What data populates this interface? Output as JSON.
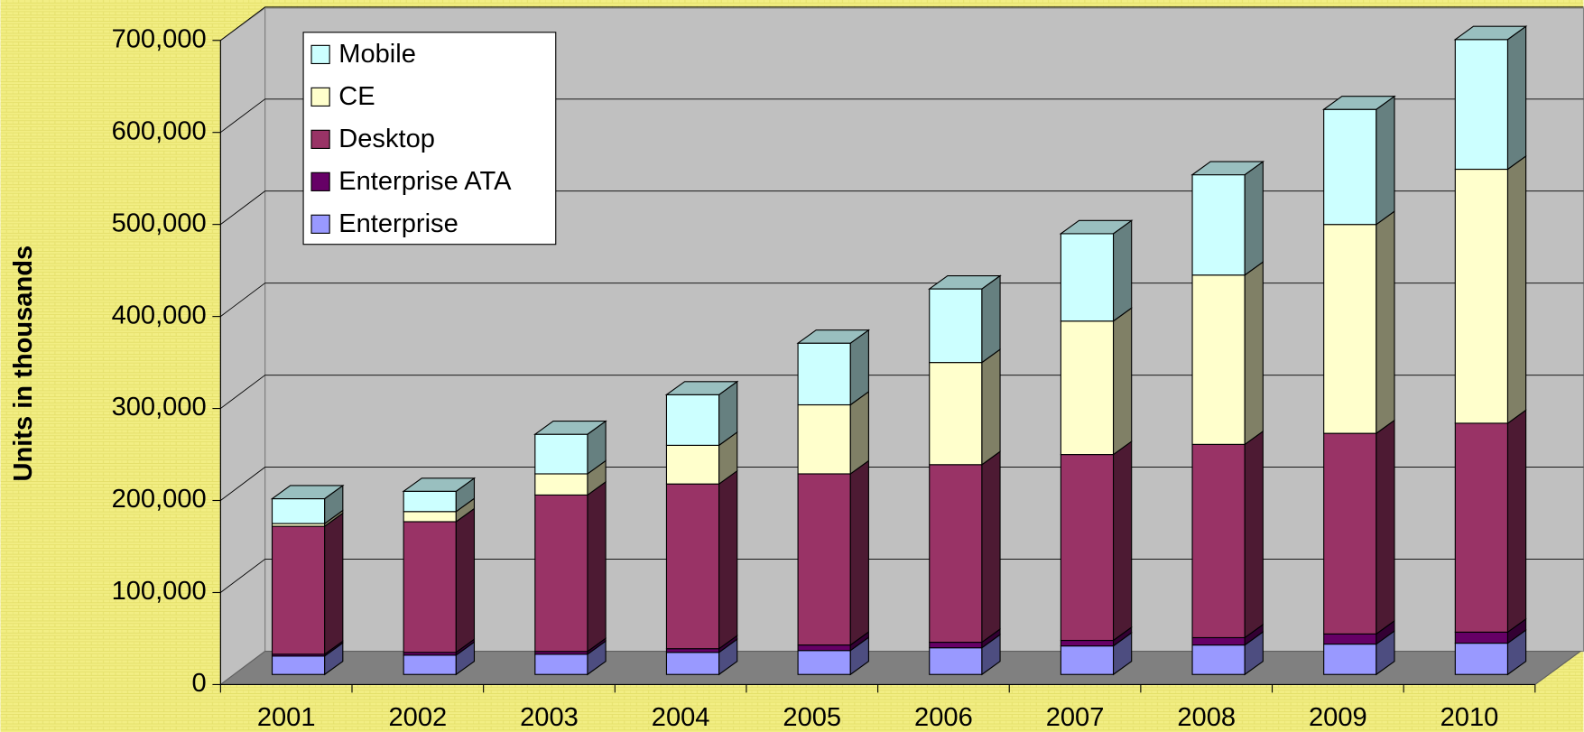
{
  "chart_data": {
    "type": "bar3d_stacked",
    "y_label": "Units in thousands",
    "categories": [
      "2001",
      "2002",
      "2003",
      "2004",
      "2005",
      "2006",
      "2007",
      "2008",
      "2009",
      "2010"
    ],
    "series": [
      {
        "name": "Enterprise",
        "color": "#9999ff",
        "values": [
          20000,
          21000,
          22000,
          24000,
          26000,
          29000,
          31000,
          32000,
          33000,
          34000
        ]
      },
      {
        "name": "Enterprise ATA",
        "color": "#660066",
        "values": [
          2000,
          3000,
          3000,
          4000,
          6000,
          6000,
          6000,
          8000,
          11000,
          12000
        ]
      },
      {
        "name": "Desktop",
        "color": "#993366",
        "values": [
          139000,
          142000,
          170000,
          179000,
          186000,
          193000,
          202000,
          210000,
          218000,
          227000
        ]
      },
      {
        "name": "CE",
        "color": "#ffffcc",
        "values": [
          3000,
          11000,
          23000,
          42000,
          75000,
          111000,
          145000,
          184000,
          227000,
          276000
        ]
      },
      {
        "name": "Mobile",
        "color": "#ccffff",
        "values": [
          27000,
          22000,
          43000,
          55000,
          67000,
          80000,
          95000,
          109000,
          125000,
          141000
        ]
      }
    ],
    "ylim": [
      0,
      700000
    ],
    "yticks": [
      0,
      {
        "value": 100000,
        "label": "100,000"
      },
      {
        "value": 200000,
        "label": "200,000"
      },
      {
        "value": 300000,
        "label": "300,000"
      },
      {
        "value": 400000,
        "label": "400,000"
      },
      {
        "value": 500000,
        "label": "500,000"
      },
      {
        "value": 600000,
        "label": "600,000"
      },
      {
        "value": 700000,
        "label": "700,000"
      }
    ],
    "grid": true,
    "legend": "upper left"
  }
}
